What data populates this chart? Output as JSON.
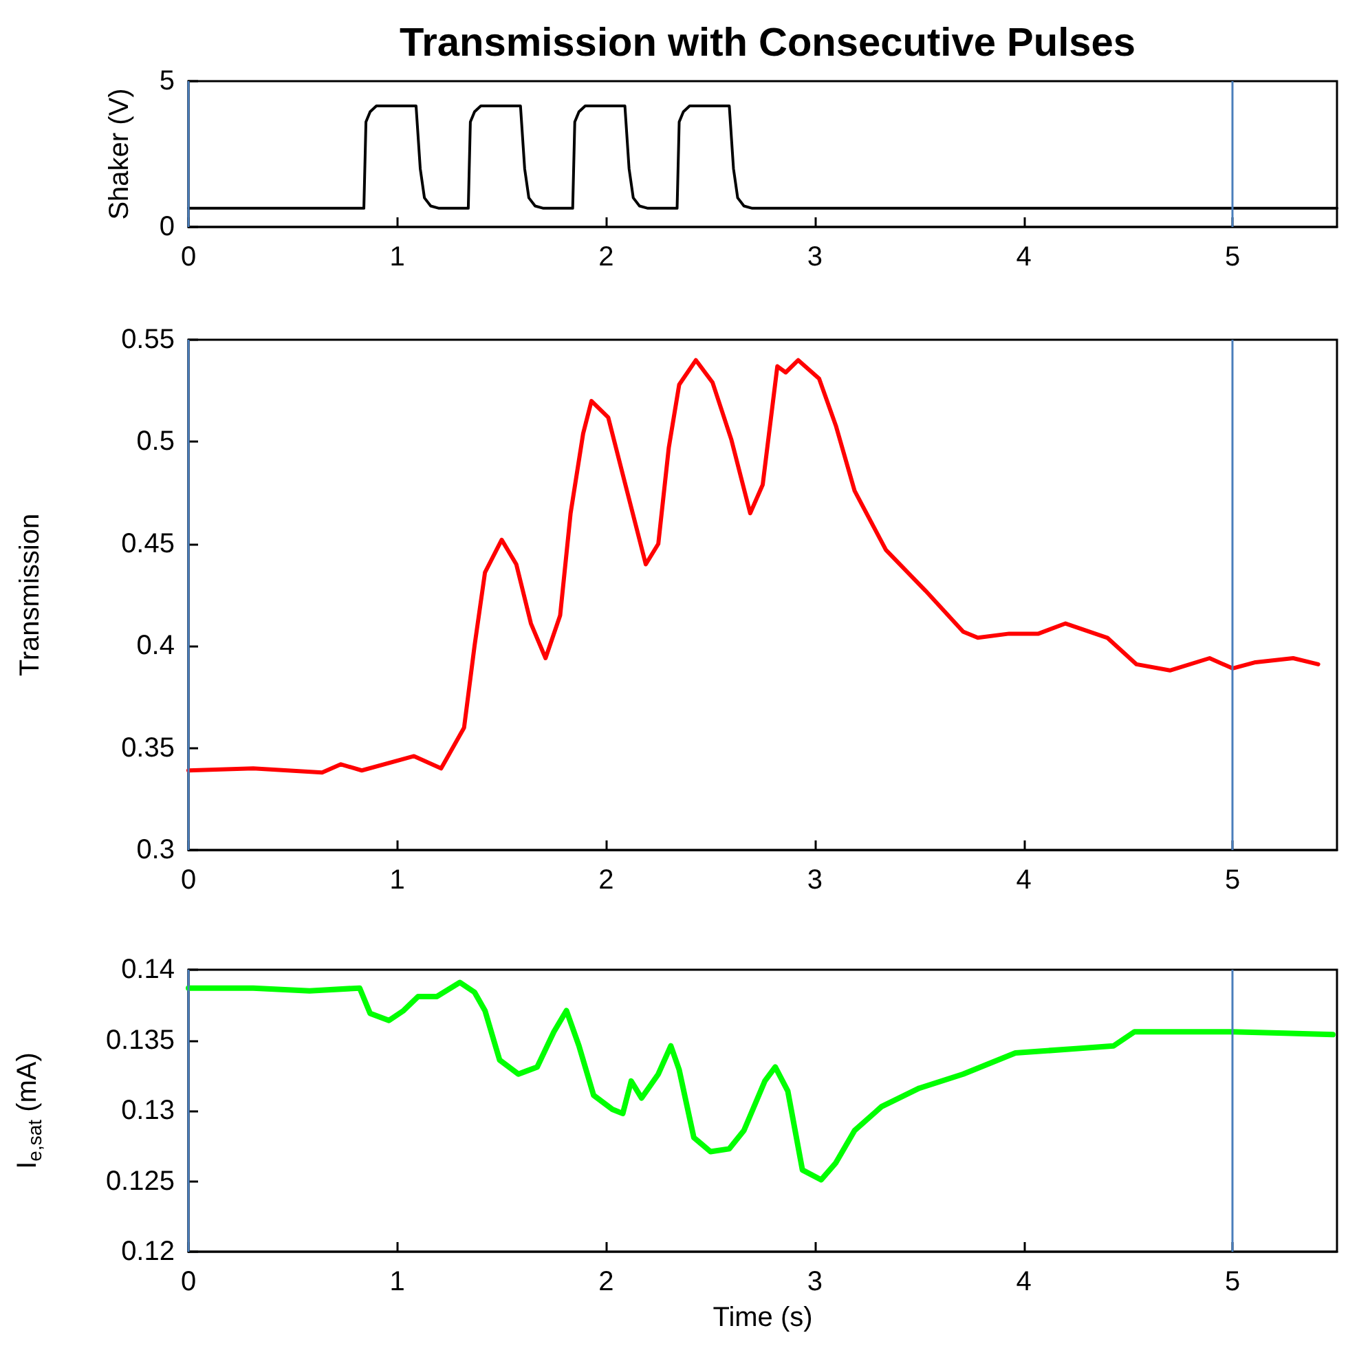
{
  "chart_data": [
    {
      "type": "line",
      "title": "Transmission with Consecutive Pulses",
      "ylabel": "Shaker (V)",
      "xlim": [
        0,
        5.5
      ],
      "xticks": [
        0,
        1,
        2,
        3,
        4,
        5
      ],
      "ylim": [
        0,
        5
      ],
      "yticks": [
        0,
        5
      ],
      "marker": "none",
      "grid": false,
      "ref_lines": [
        {
          "axis": "x",
          "value": 0,
          "color": "#4a7ebb"
        },
        {
          "axis": "x",
          "value": 5,
          "color": "#4a7ebb"
        }
      ],
      "series": [
        {
          "color": "#000000",
          "x": [
            0,
            0.84,
            0.85,
            0.87,
            0.9,
            1.09,
            1.11,
            1.13,
            1.16,
            1.2,
            1.34,
            1.35,
            1.37,
            1.4,
            1.59,
            1.61,
            1.63,
            1.66,
            1.7,
            1.84,
            1.85,
            1.87,
            1.9,
            2.09,
            2.11,
            2.13,
            2.16,
            2.2,
            2.34,
            2.35,
            2.37,
            2.4,
            2.59,
            2.61,
            2.63,
            2.66,
            2.7,
            5.5
          ],
          "values": [
            0.64,
            0.64,
            3.6,
            3.95,
            4.15,
            4.15,
            2.0,
            1.0,
            0.72,
            0.64,
            0.64,
            3.6,
            3.95,
            4.15,
            4.15,
            2.0,
            1.0,
            0.72,
            0.64,
            0.64,
            3.6,
            3.95,
            4.15,
            4.15,
            2.0,
            1.0,
            0.72,
            0.64,
            0.64,
            3.6,
            3.95,
            4.15,
            4.15,
            2.0,
            1.0,
            0.72,
            0.64,
            0.64
          ]
        }
      ]
    },
    {
      "type": "line",
      "ylabel": "Transmission",
      "xlim": [
        0,
        5.5
      ],
      "xticks": [
        0,
        1,
        2,
        3,
        4,
        5
      ],
      "ylim": [
        0.3,
        0.55
      ],
      "yticks": [
        0.3,
        0.35,
        0.4,
        0.45,
        0.5,
        0.55
      ],
      "marker": "none",
      "grid": false,
      "ref_lines": [
        {
          "axis": "x",
          "value": 0,
          "color": "#4a7ebb"
        },
        {
          "axis": "x",
          "value": 5,
          "color": "#4a7ebb"
        }
      ],
      "series": [
        {
          "color": "#ff0000",
          "x": [
            0,
            0.31,
            0.64,
            0.73,
            0.83,
            1.08,
            1.21,
            1.32,
            1.37,
            1.42,
            1.5,
            1.57,
            1.64,
            1.71,
            1.78,
            1.83,
            1.89,
            1.93,
            2.01,
            2.1,
            2.19,
            2.25,
            2.3,
            2.35,
            2.43,
            2.51,
            2.6,
            2.69,
            2.75,
            2.82,
            2.86,
            2.92,
            3.02,
            3.1,
            3.19,
            3.34,
            3.53,
            3.71,
            3.78,
            3.93,
            4.07,
            4.2,
            4.4,
            4.54,
            4.7,
            4.89,
            5.0,
            5.11,
            5.29,
            5.41
          ],
          "values": [
            0.339,
            0.34,
            0.338,
            0.342,
            0.339,
            0.346,
            0.34,
            0.36,
            0.4,
            0.436,
            0.452,
            0.44,
            0.411,
            0.394,
            0.415,
            0.465,
            0.504,
            0.52,
            0.512,
            0.476,
            0.44,
            0.45,
            0.497,
            0.528,
            0.54,
            0.529,
            0.501,
            0.465,
            0.479,
            0.537,
            0.534,
            0.54,
            0.531,
            0.508,
            0.476,
            0.447,
            0.427,
            0.407,
            0.404,
            0.406,
            0.406,
            0.411,
            0.404,
            0.391,
            0.388,
            0.394,
            0.389,
            0.392,
            0.394,
            0.391
          ]
        }
      ]
    },
    {
      "type": "line",
      "ylabel": "I$_{e,sat}$ (mA)",
      "xlabel": "Time (s)",
      "xlim": [
        0,
        5.5
      ],
      "xticks": [
        0,
        1,
        2,
        3,
        4,
        5
      ],
      "ylim": [
        0.12,
        0.14
      ],
      "yticks": [
        0.12,
        0.125,
        0.13,
        0.135,
        0.14
      ],
      "marker": "none",
      "grid": false,
      "ref_lines": [
        {
          "axis": "x",
          "value": 0,
          "color": "#4a7ebb"
        },
        {
          "axis": "x",
          "value": 5,
          "color": "#4a7ebb"
        }
      ],
      "series": [
        {
          "color": "#00ff00",
          "x": [
            0,
            0.31,
            0.58,
            0.82,
            0.87,
            0.96,
            1.03,
            1.1,
            1.19,
            1.3,
            1.37,
            1.42,
            1.49,
            1.58,
            1.67,
            1.75,
            1.81,
            1.87,
            1.94,
            2.03,
            2.08,
            2.12,
            2.17,
            2.25,
            2.31,
            2.35,
            2.42,
            2.5,
            2.59,
            2.66,
            2.76,
            2.81,
            2.87,
            2.94,
            3.03,
            3.1,
            3.19,
            3.32,
            3.5,
            3.71,
            3.96,
            4.25,
            4.43,
            4.53,
            4.78,
            5.0,
            5.25,
            5.48
          ],
          "values": [
            0.1387,
            0.1387,
            0.1385,
            0.1387,
            0.1369,
            0.1364,
            0.1371,
            0.1381,
            0.1381,
            0.1391,
            0.1384,
            0.1371,
            0.1336,
            0.1326,
            0.1331,
            0.1356,
            0.1371,
            0.1346,
            0.1311,
            0.1301,
            0.1298,
            0.1321,
            0.1309,
            0.1326,
            0.1346,
            0.1329,
            0.1281,
            0.1271,
            0.1273,
            0.1286,
            0.1321,
            0.1331,
            0.1314,
            0.1258,
            0.1251,
            0.1263,
            0.1286,
            0.1303,
            0.1316,
            0.1326,
            0.1341,
            0.1344,
            0.1346,
            0.1356,
            0.1356,
            0.1356,
            0.1355,
            0.1354
          ]
        }
      ]
    }
  ]
}
